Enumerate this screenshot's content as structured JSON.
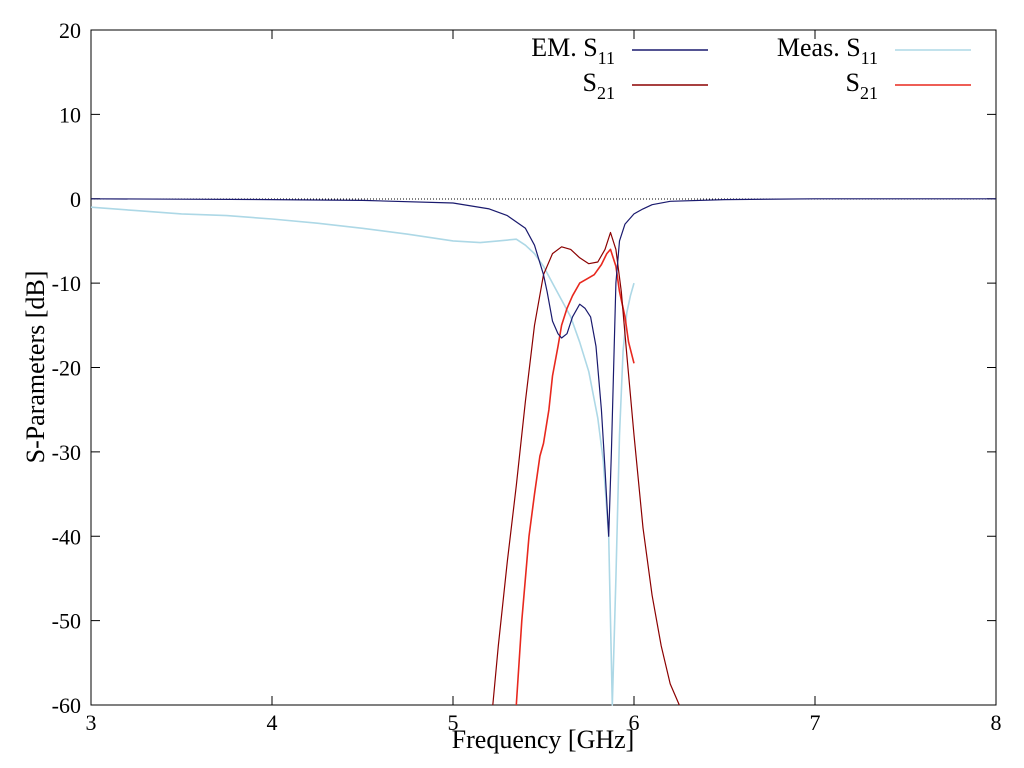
{
  "chart_data": {
    "type": "line",
    "xlabel": "Frequency [GHz]",
    "ylabel": "S-Parameters [dB]",
    "xlim": [
      3,
      8
    ],
    "ylim": [
      -60,
      20
    ],
    "x_ticks": [
      3,
      4,
      5,
      6,
      7,
      8
    ],
    "y_ticks": [
      20,
      10,
      0,
      -10,
      -20,
      -30,
      -40,
      -50,
      -60
    ],
    "grid": false,
    "legend": {
      "placement": "top",
      "entries": [
        {
          "label": "EM. S",
          "sub": "11",
          "color": "#1a1a6e"
        },
        {
          "label": "S",
          "sub": "21",
          "color": "#8b0000"
        },
        {
          "label": "Meas. S",
          "sub": "11",
          "color": "#add8e6"
        },
        {
          "label": "S",
          "sub": "21",
          "color": "#e8281e"
        }
      ]
    },
    "series": [
      {
        "legend_index": 0,
        "color": "#1a1a6e",
        "x": [
          3.0,
          3.5,
          4.0,
          4.5,
          5.0,
          5.2,
          5.3,
          5.4,
          5.45,
          5.5,
          5.52,
          5.55,
          5.58,
          5.6,
          5.63,
          5.66,
          5.7,
          5.73,
          5.76,
          5.79,
          5.82,
          5.84,
          5.86,
          5.875,
          5.89,
          5.9,
          5.92,
          5.95,
          6.0,
          6.05,
          6.1,
          6.2,
          6.5,
          7.0,
          7.5,
          8.0
        ],
        "y": [
          0,
          -0.05,
          -0.1,
          -0.2,
          -0.5,
          -1.2,
          -2.0,
          -3.5,
          -5.5,
          -9.0,
          -11.0,
          -14.5,
          -16.0,
          -16.5,
          -16.0,
          -14.0,
          -12.5,
          -13.0,
          -14.0,
          -17.5,
          -25.0,
          -32.0,
          -40.0,
          -30.0,
          -18.0,
          -10.0,
          -5.0,
          -3.0,
          -1.8,
          -1.2,
          -0.7,
          -0.3,
          -0.1,
          0,
          0,
          0
        ]
      },
      {
        "legend_index": 1,
        "color": "#8b0000",
        "x": [
          5.22,
          5.25,
          5.3,
          5.35,
          5.4,
          5.45,
          5.5,
          5.55,
          5.6,
          5.65,
          5.7,
          5.75,
          5.8,
          5.84,
          5.87,
          5.9,
          5.93,
          5.96,
          6.0,
          6.05,
          6.1,
          6.15,
          6.2,
          6.25
        ],
        "y": [
          -60,
          -53.0,
          -43.0,
          -34.0,
          -24.0,
          -15.0,
          -9.0,
          -6.5,
          -5.7,
          -6.0,
          -7.0,
          -7.7,
          -7.5,
          -6.0,
          -4.0,
          -6.0,
          -11.0,
          -18.5,
          -28.0,
          -39.0,
          -47.0,
          -53.0,
          -57.5,
          -60
        ]
      },
      {
        "legend_index": 2,
        "color": "#add8e6",
        "x": [
          3.0,
          3.25,
          3.5,
          3.75,
          4.0,
          4.25,
          4.5,
          4.75,
          5.0,
          5.15,
          5.25,
          5.35,
          5.4,
          5.45,
          5.5,
          5.55,
          5.6,
          5.65,
          5.7,
          5.75,
          5.8,
          5.83,
          5.86,
          5.88,
          5.9,
          5.92,
          5.94,
          5.96,
          5.98,
          6.0
        ],
        "y": [
          -1.0,
          -1.4,
          -1.8,
          -2.0,
          -2.4,
          -2.9,
          -3.5,
          -4.2,
          -5.0,
          -5.2,
          -5.0,
          -4.8,
          -5.5,
          -6.5,
          -8.0,
          -10.0,
          -12.0,
          -14.0,
          -17.0,
          -20.5,
          -26.0,
          -31.0,
          -40.0,
          -60.0,
          -45.0,
          -28.0,
          -18.0,
          -13.5,
          -11.5,
          -10.0
        ]
      },
      {
        "legend_index": 3,
        "color": "#e8281e",
        "x": [
          5.35,
          5.38,
          5.42,
          5.45,
          5.48,
          5.5,
          5.53,
          5.55,
          5.58,
          5.6,
          5.63,
          5.66,
          5.7,
          5.74,
          5.78,
          5.82,
          5.85,
          5.87,
          5.9,
          5.92,
          5.95,
          5.97,
          6.0
        ],
        "y": [
          -60,
          -50.0,
          -40.0,
          -35.0,
          -30.5,
          -29.0,
          -25.0,
          -21.0,
          -17.5,
          -15.0,
          -13.0,
          -11.5,
          -10.0,
          -9.5,
          -9.0,
          -7.8,
          -6.5,
          -6.0,
          -8.0,
          -11.0,
          -14.0,
          -17.0,
          -19.5
        ]
      }
    ]
  }
}
